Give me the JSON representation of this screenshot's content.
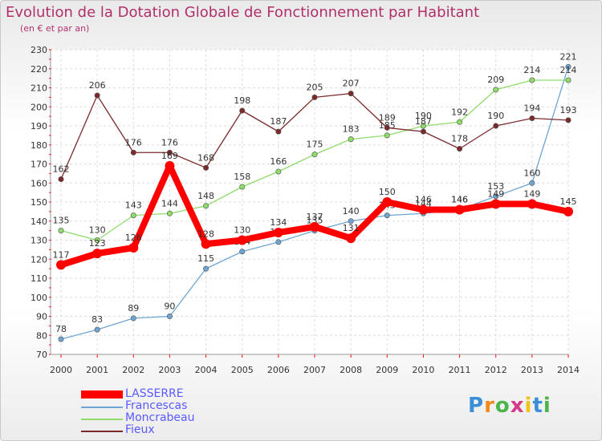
{
  "title": "Evolution de la Dotation Globale de Fonctionnement par Habitant",
  "subtitle": "(en € et par an)",
  "logo": "Proxiti",
  "chart_data": {
    "type": "line",
    "title": "Evolution de la Dotation Globale de Fonctionnement par Habitant",
    "subtitle": "(en € et par an)",
    "xlabel": "",
    "ylabel": "",
    "x": [
      "2000",
      "2001",
      "2002",
      "2003",
      "2004",
      "2005",
      "2006",
      "2007",
      "2008",
      "2009",
      "2010",
      "2011",
      "2012",
      "2013",
      "2014"
    ],
    "ylim": [
      70,
      230
    ],
    "yticks": [
      70,
      80,
      90,
      100,
      110,
      120,
      130,
      140,
      150,
      160,
      170,
      180,
      190,
      200,
      210,
      220,
      230
    ],
    "grid": true,
    "legend_position": "bottom-left",
    "series": [
      {
        "name": "LASSERRE",
        "color": "#ff0000",
        "emphasis": true,
        "values": [
          117,
          123,
          126,
          169,
          128,
          130,
          134,
          137,
          131,
          150,
          146,
          146,
          149,
          149,
          145
        ]
      },
      {
        "name": "Francescas",
        "color": "#6fa5d2",
        "values": [
          78,
          83,
          89,
          90,
          115,
          124,
          129,
          135,
          140,
          143,
          144,
          146,
          153,
          160,
          221
        ]
      },
      {
        "name": "Moncrabeau",
        "color": "#8fdc6a",
        "values": [
          135,
          130,
          143,
          144,
          148,
          158,
          166,
          175,
          183,
          185,
          190,
          192,
          209,
          214,
          214
        ]
      },
      {
        "name": "Fieux",
        "color": "#7a2a2a",
        "values": [
          162,
          206,
          176,
          176,
          168,
          198,
          187,
          205,
          207,
          189,
          187,
          178,
          190,
          194,
          193
        ]
      }
    ]
  }
}
